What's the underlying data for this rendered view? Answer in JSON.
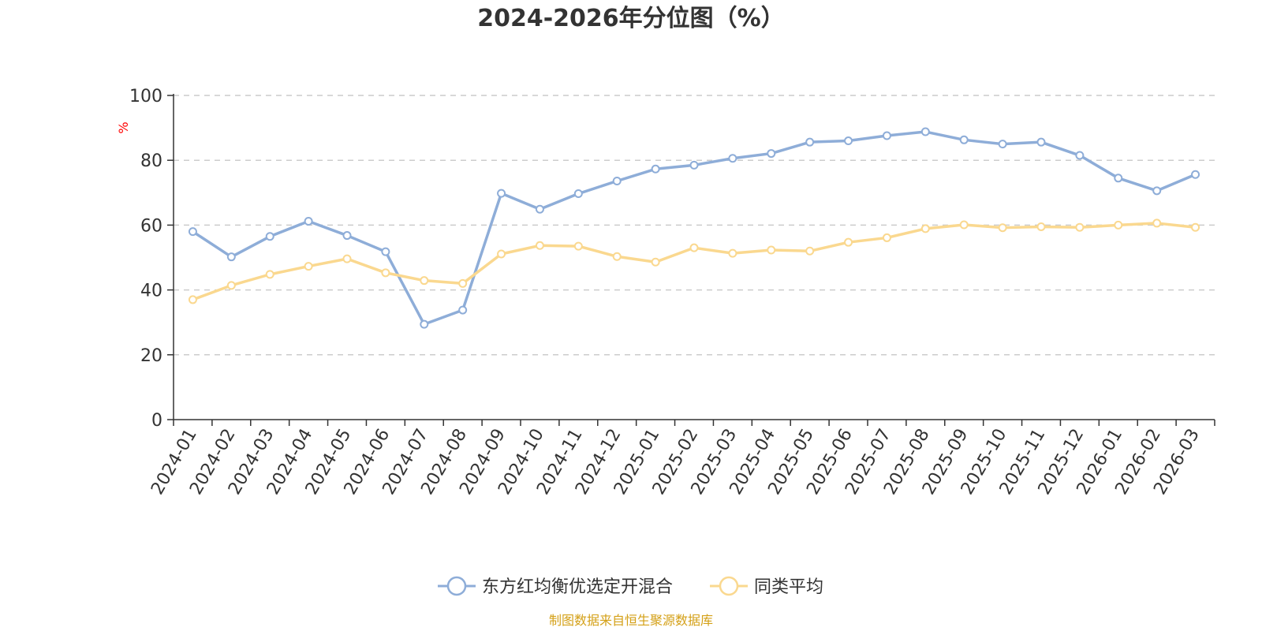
{
  "chart_data": {
    "type": "line",
    "title": "2024-2026年分位图（%）",
    "y_unit_label": "%",
    "ylim": [
      0,
      100
    ],
    "y_ticks": [
      0,
      20,
      40,
      60,
      80,
      100
    ],
    "grid": true,
    "legend_position": "bottom-center",
    "categories": [
      "2024-01",
      "2024-02",
      "2024-03",
      "2024-04",
      "2024-05",
      "2024-06",
      "2024-07",
      "2024-08",
      "2024-09",
      "2024-10",
      "2024-11",
      "2024-12",
      "2025-01",
      "2025-02",
      "2025-03",
      "2025-04",
      "2025-05",
      "2025-06",
      "2025-07",
      "2025-08",
      "2025-09",
      "2025-10",
      "2025-11",
      "2025-12",
      "2026-01",
      "2026-02",
      "2026-03"
    ],
    "series": [
      {
        "name": "东方红均衡优选定开混合",
        "color": "#8eadd8",
        "values": [
          58.0,
          50.2,
          56.5,
          61.2,
          56.8,
          51.8,
          29.4,
          33.8,
          69.8,
          64.9,
          69.7,
          73.6,
          77.3,
          78.5,
          80.6,
          82.1,
          85.6,
          86.0,
          87.6,
          88.8,
          86.3,
          85.0,
          85.6,
          81.5,
          74.5,
          70.6,
          75.6
        ]
      },
      {
        "name": "同类平均",
        "color": "#fad88f",
        "values": [
          37.0,
          41.4,
          44.8,
          47.3,
          49.6,
          45.3,
          42.9,
          42.0,
          51.1,
          53.7,
          53.5,
          50.3,
          48.6,
          53.0,
          51.3,
          52.3,
          52.0,
          54.7,
          56.1,
          58.9,
          60.1,
          59.2,
          59.5,
          59.3,
          60.0,
          60.6,
          59.3
        ]
      }
    ]
  },
  "source": "制图数据来自恒生聚源数据库",
  "colors": {
    "axis": "#333333",
    "grid": "#cccccc",
    "unit_label": "#ff0000",
    "source_text": "#d4a017"
  }
}
